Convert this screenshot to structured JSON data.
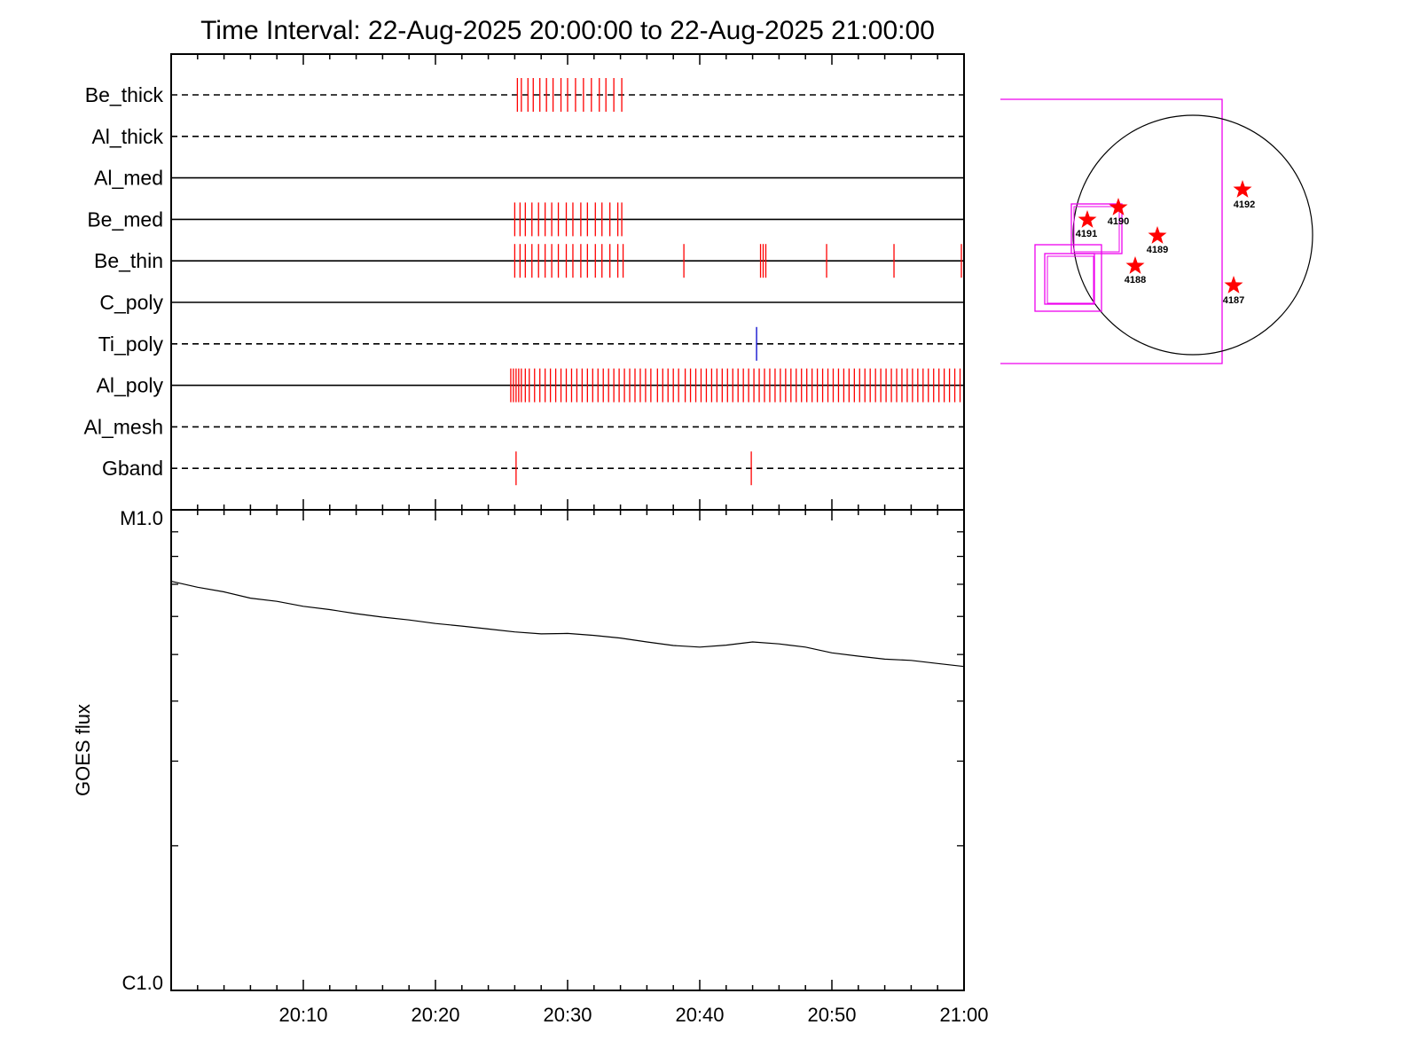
{
  "title": "Time Interval: 22-Aug-2025 20:00:00 to 22-Aug-2025 21:00:00",
  "chart_data": [
    {
      "type": "timeline",
      "x_range": [
        "20:00:00",
        "21:00:00"
      ],
      "channels": [
        {
          "name": "Be_thick",
          "style": "dashed",
          "events_min": [
            26.2,
            26.5,
            27.0,
            27.4,
            27.9,
            28.4,
            28.9,
            29.5,
            30.0,
            30.6,
            31.2,
            31.8,
            32.4,
            32.9,
            33.5,
            34.1
          ]
        },
        {
          "name": "Al_thick",
          "style": "dashed",
          "events_min": []
        },
        {
          "name": "Al_med",
          "style": "solid",
          "events_min": []
        },
        {
          "name": "Be_med",
          "style": "solid",
          "events_min": [
            26.0,
            26.4,
            26.8,
            27.3,
            27.8,
            28.3,
            28.8,
            29.3,
            29.9,
            30.4,
            31.0,
            31.5,
            32.1,
            32.6,
            33.2,
            33.8,
            34.1
          ]
        },
        {
          "name": "Be_thin",
          "style": "solid",
          "events_min": [
            26.0,
            26.4,
            26.8,
            27.3,
            27.8,
            28.3,
            28.8,
            29.3,
            29.9,
            30.4,
            31.0,
            31.5,
            32.1,
            32.6,
            33.2,
            33.8,
            34.2,
            38.8,
            44.6,
            44.8,
            45.0,
            49.6,
            54.7,
            59.8
          ]
        },
        {
          "name": "C_poly",
          "style": "solid",
          "events_min": []
        },
        {
          "name": "Ti_poly",
          "style": "dashed",
          "events_min": [
            44.3
          ],
          "event_color": "#0000cc"
        },
        {
          "name": "Al_poly",
          "style": "solid",
          "events_min": [
            25.7,
            25.9,
            26.1,
            26.3,
            26.5,
            26.8,
            27.1,
            27.5,
            27.9,
            28.3,
            28.7,
            29.1,
            29.5,
            29.9,
            30.3,
            30.7,
            31.1,
            31.5,
            31.9,
            32.3,
            32.7,
            33.1,
            33.5,
            33.9,
            34.3,
            34.7,
            35.1,
            35.5,
            35.9,
            36.3,
            36.8,
            37.2,
            37.6,
            38.0,
            38.4,
            38.9,
            39.3,
            39.7,
            40.1,
            40.5,
            40.9,
            41.3,
            41.7,
            42.1,
            42.5,
            42.9,
            43.3,
            43.7,
            44.1,
            44.5,
            44.9,
            45.3,
            45.7,
            46.1,
            46.5,
            46.9,
            47.3,
            47.7,
            48.1,
            48.5,
            48.9,
            49.3,
            49.7,
            50.1,
            50.5,
            50.9,
            51.3,
            51.7,
            52.1,
            52.5,
            52.9,
            53.3,
            53.7,
            54.1,
            54.5,
            54.9,
            55.3,
            55.7,
            56.1,
            56.5,
            56.9,
            57.3,
            57.7,
            58.1,
            58.5,
            58.9,
            59.3,
            59.7
          ]
        },
        {
          "name": "Al_mesh",
          "style": "dashed",
          "events_min": []
        },
        {
          "name": "Gband",
          "style": "dashed",
          "events_min": [
            26.1,
            43.9
          ]
        }
      ],
      "event_color": "#ff0000"
    },
    {
      "type": "line",
      "ylabel": "GOES flux",
      "y_scale": "log",
      "y_tick_labels": [
        "M1.0",
        "C1.0"
      ],
      "ylim": [
        1e-06,
        1e-05
      ],
      "x_tick_labels": [
        "20:10",
        "20:20",
        "20:30",
        "20:40",
        "20:50",
        "21:00"
      ],
      "x_range_min": [
        0,
        60
      ],
      "series": [
        {
          "x_min": [
            0,
            2,
            4,
            6,
            8,
            10,
            12,
            14,
            16,
            18,
            20,
            22,
            24,
            26,
            28,
            30,
            32,
            34,
            36,
            38,
            40,
            42,
            44,
            46,
            48,
            50,
            52,
            54,
            56,
            58,
            60
          ],
          "y": [
            7.1e-06,
            6.9e-06,
            6.75e-06,
            6.55e-06,
            6.45e-06,
            6.3e-06,
            6.2e-06,
            6.08e-06,
            5.98e-06,
            5.9e-06,
            5.8e-06,
            5.73e-06,
            5.65e-06,
            5.57e-06,
            5.52e-06,
            5.53e-06,
            5.48e-06,
            5.41e-06,
            5.31e-06,
            5.22e-06,
            5.18e-06,
            5.23e-06,
            5.31e-06,
            5.26e-06,
            5.18e-06,
            5.04e-06,
            4.96e-06,
            4.89e-06,
            4.86e-06,
            4.79e-06,
            4.72e-06
          ]
        }
      ],
      "color": "#000000"
    }
  ],
  "map": {
    "sun_edge_color": "#000000",
    "box_color": "#ee00ee",
    "star_color": "#ff0000",
    "active_regions": [
      "4192",
      "4190",
      "4191",
      "4189",
      "4188",
      "4187"
    ]
  }
}
